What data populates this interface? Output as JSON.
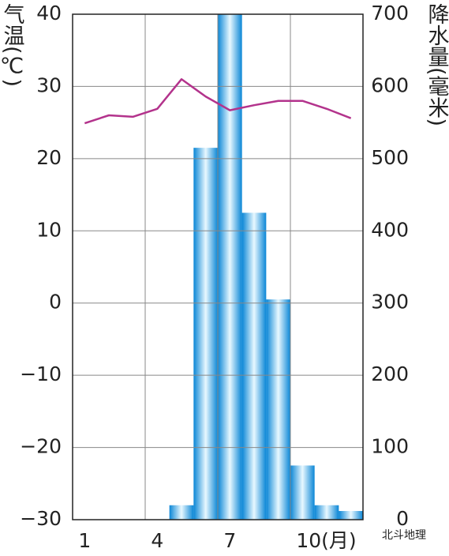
{
  "chart_data": {
    "type": "climate",
    "y_label": "气温(℃)",
    "y2_label": "降水量(毫米)",
    "categories": [
      "1",
      null,
      null,
      "4",
      null,
      null,
      "7",
      null,
      null,
      "10(月)",
      null,
      null
    ],
    "series": [
      {
        "name": "降水量",
        "type": "bar",
        "axis": "y2",
        "color": "#1ea6e6",
        "values": [
          0,
          0,
          0,
          0,
          20,
          515,
          720,
          425,
          305,
          75,
          20,
          12
        ]
      },
      {
        "name": "气温",
        "type": "line",
        "axis": "y",
        "color": "#b3338c",
        "values": [
          24.9,
          26,
          25.8,
          26.9,
          31,
          28.6,
          26.7,
          27.4,
          28,
          28,
          26.9,
          25.6
        ]
      }
    ],
    "ylim": [
      -30,
      40
    ],
    "yticks": [
      {
        "value": -30,
        "label": "−30"
      },
      {
        "value": -20,
        "label": "−20"
      },
      {
        "value": -10,
        "label": "−10"
      },
      0,
      10,
      20,
      30,
      40
    ],
    "y2lim": [
      0,
      700
    ],
    "y2ticks": [
      0,
      100,
      200,
      300,
      400,
      500,
      600,
      700
    ],
    "grid": true,
    "watermark": "北斗地理"
  }
}
